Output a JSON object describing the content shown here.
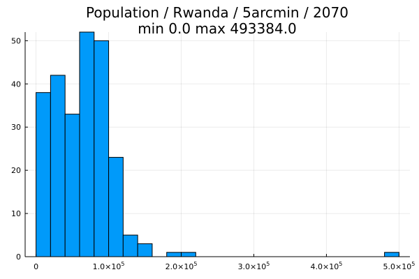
{
  "chart_data": {
    "type": "bar",
    "title_line1": "Population / Rwanda / 5arcmin / 2070",
    "title_line2": "min 0.0  max 493384.0",
    "xlabel": "",
    "ylabel": "",
    "bin_width": 20000,
    "bins": [
      {
        "start": 0,
        "end": 20000,
        "count": 38
      },
      {
        "start": 20000,
        "end": 40000,
        "count": 42
      },
      {
        "start": 40000,
        "end": 60000,
        "count": 33
      },
      {
        "start": 60000,
        "end": 80000,
        "count": 52
      },
      {
        "start": 80000,
        "end": 100000,
        "count": 50
      },
      {
        "start": 100000,
        "end": 120000,
        "count": 23
      },
      {
        "start": 120000,
        "end": 140000,
        "count": 5
      },
      {
        "start": 140000,
        "end": 160000,
        "count": 3
      },
      {
        "start": 180000,
        "end": 200000,
        "count": 1
      },
      {
        "start": 200000,
        "end": 220000,
        "count": 1
      },
      {
        "start": 480000,
        "end": 500000,
        "count": 1
      }
    ],
    "xlim": [
      -15000,
      515000
    ],
    "ylim": [
      0,
      52
    ],
    "xticks": [
      {
        "value": 0,
        "mantissa": "0",
        "exp": ""
      },
      {
        "value": 100000,
        "mantissa": "1.0×10",
        "exp": "5"
      },
      {
        "value": 200000,
        "mantissa": "2.0×10",
        "exp": "5"
      },
      {
        "value": 300000,
        "mantissa": "3.0×10",
        "exp": "5"
      },
      {
        "value": 400000,
        "mantissa": "4.0×10",
        "exp": "5"
      },
      {
        "value": 500000,
        "mantissa": "5.0×10",
        "exp": "5"
      }
    ],
    "yticks": [
      {
        "value": 0,
        "label": "0"
      },
      {
        "value": 10,
        "label": "10"
      },
      {
        "value": 20,
        "label": "20"
      },
      {
        "value": 30,
        "label": "30"
      },
      {
        "value": 40,
        "label": "40"
      },
      {
        "value": 50,
        "label": "50"
      }
    ],
    "grid": true,
    "legend": "none",
    "bar_color": "#009AFA"
  }
}
